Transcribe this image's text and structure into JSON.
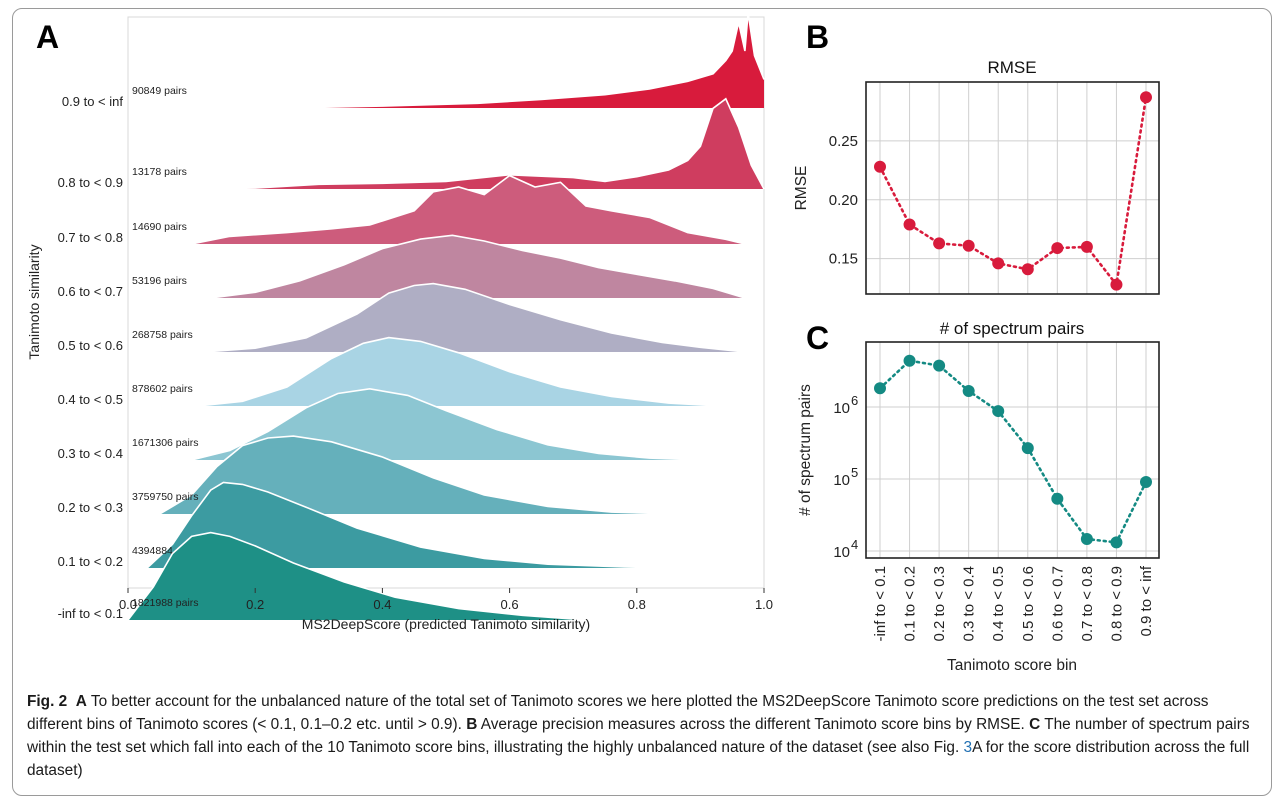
{
  "chart_data": [
    {
      "panel": "A",
      "type": "ridgeline",
      "xlabel": "MS2DeepScore (predicted Tanimoto similarity)",
      "ylabel": "Tanimoto similarity",
      "xlim": [
        0,
        1
      ],
      "xticks": [
        "0.0",
        "0.2",
        "0.4",
        "0.6",
        "0.8",
        "1.0"
      ],
      "ridges": [
        {
          "bin": "0.9 to < inf",
          "pairs": "90849 pairs",
          "color": "#d81b3c",
          "density": [
            [
              0.25,
              0.0
            ],
            [
              0.4,
              0.02
            ],
            [
              0.55,
              0.05
            ],
            [
              0.65,
              0.09
            ],
            [
              0.75,
              0.14
            ],
            [
              0.82,
              0.2
            ],
            [
              0.88,
              0.28
            ],
            [
              0.92,
              0.36
            ],
            [
              0.94,
              0.5
            ],
            [
              0.95,
              0.6
            ],
            [
              0.96,
              0.9
            ],
            [
              0.97,
              0.6
            ],
            [
              0.975,
              1.0
            ],
            [
              0.985,
              0.55
            ],
            [
              1.0,
              0.3
            ]
          ]
        },
        {
          "bin": "0.8 to < 0.9",
          "pairs": "13178 pairs",
          "color": "#cf3d5f",
          "density": [
            [
              0.1,
              0.0
            ],
            [
              0.2,
              0.01
            ],
            [
              0.3,
              0.05
            ],
            [
              0.4,
              0.06
            ],
            [
              0.5,
              0.08
            ],
            [
              0.6,
              0.15
            ],
            [
              0.7,
              0.12
            ],
            [
              0.75,
              0.08
            ],
            [
              0.8,
              0.13
            ],
            [
              0.85,
              0.2
            ],
            [
              0.88,
              0.3
            ],
            [
              0.9,
              0.45
            ],
            [
              0.92,
              0.85
            ],
            [
              0.94,
              0.95
            ],
            [
              0.96,
              0.65
            ],
            [
              0.98,
              0.25
            ],
            [
              1.0,
              0.0
            ]
          ]
        },
        {
          "bin": "0.7 to < 0.8",
          "pairs": "14690 pairs",
          "color": "#cd5c7c",
          "density": [
            [
              0.1,
              0.0
            ],
            [
              0.16,
              0.08
            ],
            [
              0.25,
              0.12
            ],
            [
              0.32,
              0.16
            ],
            [
              0.38,
              0.2
            ],
            [
              0.45,
              0.35
            ],
            [
              0.48,
              0.55
            ],
            [
              0.52,
              0.6
            ],
            [
              0.56,
              0.52
            ],
            [
              0.6,
              0.72
            ],
            [
              0.64,
              0.6
            ],
            [
              0.68,
              0.65
            ],
            [
              0.72,
              0.4
            ],
            [
              0.76,
              0.35
            ],
            [
              0.82,
              0.28
            ],
            [
              0.88,
              0.12
            ],
            [
              0.94,
              0.05
            ],
            [
              0.97,
              0.0
            ]
          ]
        },
        {
          "bin": "0.6 to < 0.7",
          "pairs": "53196 pairs",
          "color": "#bf86a0",
          "density": [
            [
              0.13,
              0.0
            ],
            [
              0.2,
              0.06
            ],
            [
              0.27,
              0.18
            ],
            [
              0.34,
              0.35
            ],
            [
              0.4,
              0.52
            ],
            [
              0.46,
              0.62
            ],
            [
              0.51,
              0.66
            ],
            [
              0.56,
              0.6
            ],
            [
              0.62,
              0.5
            ],
            [
              0.68,
              0.42
            ],
            [
              0.74,
              0.32
            ],
            [
              0.8,
              0.25
            ],
            [
              0.86,
              0.18
            ],
            [
              0.92,
              0.1
            ],
            [
              0.97,
              0.0
            ]
          ]
        },
        {
          "bin": "0.5 to < 0.6",
          "pairs": "268758 pairs",
          "color": "#afaec4",
          "density": [
            [
              0.12,
              0.0
            ],
            [
              0.2,
              0.04
            ],
            [
              0.28,
              0.15
            ],
            [
              0.36,
              0.4
            ],
            [
              0.41,
              0.62
            ],
            [
              0.45,
              0.7
            ],
            [
              0.48,
              0.72
            ],
            [
              0.53,
              0.66
            ],
            [
              0.6,
              0.5
            ],
            [
              0.68,
              0.34
            ],
            [
              0.76,
              0.2
            ],
            [
              0.84,
              0.1
            ],
            [
              0.9,
              0.05
            ],
            [
              0.97,
              0.0
            ]
          ]
        },
        {
          "bin": "0.4 to < 0.5",
          "pairs": "878602 pairs",
          "color": "#a9d4e4",
          "density": [
            [
              0.11,
              0.0
            ],
            [
              0.18,
              0.05
            ],
            [
              0.25,
              0.2
            ],
            [
              0.32,
              0.5
            ],
            [
              0.37,
              0.66
            ],
            [
              0.41,
              0.72
            ],
            [
              0.46,
              0.68
            ],
            [
              0.52,
              0.56
            ],
            [
              0.6,
              0.36
            ],
            [
              0.68,
              0.2
            ],
            [
              0.76,
              0.1
            ],
            [
              0.85,
              0.03
            ],
            [
              0.93,
              0.0
            ]
          ]
        },
        {
          "bin": "0.3 to < 0.4",
          "pairs": "1671306 pairs",
          "color": "#8cc6d2",
          "density": [
            [
              0.1,
              0.0
            ],
            [
              0.16,
              0.1
            ],
            [
              0.22,
              0.3
            ],
            [
              0.28,
              0.55
            ],
            [
              0.33,
              0.7
            ],
            [
              0.38,
              0.75
            ],
            [
              0.44,
              0.68
            ],
            [
              0.5,
              0.52
            ],
            [
              0.58,
              0.32
            ],
            [
              0.66,
              0.16
            ],
            [
              0.74,
              0.07
            ],
            [
              0.82,
              0.02
            ],
            [
              0.9,
              0.0
            ]
          ]
        },
        {
          "bin": "0.2 to < 0.3",
          "pairs": "3759750 pairs",
          "color": "#65b0bb",
          "density": [
            [
              0.05,
              0.0
            ],
            [
              0.1,
              0.2
            ],
            [
              0.14,
              0.5
            ],
            [
              0.18,
              0.72
            ],
            [
              0.22,
              0.8
            ],
            [
              0.26,
              0.82
            ],
            [
              0.32,
              0.76
            ],
            [
              0.4,
              0.6
            ],
            [
              0.48,
              0.38
            ],
            [
              0.56,
              0.2
            ],
            [
              0.66,
              0.08
            ],
            [
              0.76,
              0.02
            ],
            [
              0.86,
              0.0
            ]
          ]
        },
        {
          "bin": "0.1 to < 0.2",
          "pairs": "4394884 pairs",
          "color": "#3c9ba1",
          "density": [
            [
              0.03,
              0.0
            ],
            [
              0.07,
              0.25
            ],
            [
              0.1,
              0.55
            ],
            [
              0.13,
              0.82
            ],
            [
              0.15,
              0.9
            ],
            [
              0.18,
              0.88
            ],
            [
              0.22,
              0.8
            ],
            [
              0.28,
              0.64
            ],
            [
              0.36,
              0.42
            ],
            [
              0.46,
              0.22
            ],
            [
              0.56,
              0.1
            ],
            [
              0.66,
              0.04
            ],
            [
              0.78,
              0.01
            ],
            [
              0.86,
              0.0
            ]
          ]
        },
        {
          "bin": "-inf to < 0.1",
          "pairs": "1821988 pairs",
          "color": "#1e9086",
          "density": [
            [
              0.0,
              0.0
            ],
            [
              0.04,
              0.35
            ],
            [
              0.07,
              0.7
            ],
            [
              0.1,
              0.88
            ],
            [
              0.13,
              0.92
            ],
            [
              0.16,
              0.88
            ],
            [
              0.2,
              0.78
            ],
            [
              0.26,
              0.6
            ],
            [
              0.34,
              0.4
            ],
            [
              0.42,
              0.24
            ],
            [
              0.52,
              0.12
            ],
            [
              0.62,
              0.05
            ],
            [
              0.72,
              0.0
            ]
          ]
        }
      ]
    },
    {
      "panel": "B",
      "type": "line",
      "title": "RMSE",
      "ylabel": "RMSE",
      "ylim": [
        0.12,
        0.3
      ],
      "yticks": [
        0.15,
        0.2,
        0.25
      ],
      "ytick_labels": [
        "0.15",
        "0.20",
        "0.25"
      ],
      "categories": [
        "-inf to < 0.1",
        "0.1 to < 0.2",
        "0.2 to < 0.3",
        "0.3 to < 0.4",
        "0.4 to < 0.5",
        "0.5 to < 0.6",
        "0.6 to < 0.7",
        "0.7 to < 0.8",
        "0.8 to < 0.9",
        "0.9 to < inf"
      ],
      "values": [
        0.228,
        0.179,
        0.163,
        0.161,
        0.146,
        0.141,
        0.159,
        0.16,
        0.128,
        0.287
      ],
      "color": "#d81b3c"
    },
    {
      "panel": "C",
      "type": "line",
      "title": "# of spectrum pairs",
      "ylabel": "# of spectrum pairs",
      "xlabel": "Tanimoto score bin",
      "yscale": "log",
      "ylim": [
        8000,
        8000000
      ],
      "yticks": [
        10000,
        100000,
        1000000
      ],
      "ytick_bases": [
        "10",
        "10",
        "10"
      ],
      "ytick_exps": [
        "4",
        "5",
        "6"
      ],
      "categories": [
        "-inf to < 0.1",
        "0.1 to < 0.2",
        "0.2 to < 0.3",
        "0.3 to < 0.4",
        "0.4 to < 0.5",
        "0.5 to < 0.6",
        "0.6 to < 0.7",
        "0.7 to < 0.8",
        "0.8 to < 0.9",
        "0.9 to < inf"
      ],
      "values": [
        1821988,
        4394884,
        3759750,
        1671306,
        878602,
        268758,
        53196,
        14690,
        13178,
        90849
      ],
      "color": "#148a83"
    }
  ],
  "labels": {
    "panel_a": "A",
    "panel_b": "B",
    "panel_c": "C"
  },
  "caption": {
    "fig": "Fig. 2",
    "a_label": "A",
    "a_text": " To better account for the unbalanced nature of the total set of Tanimoto scores we here plotted the MS2DeepScore Tanimoto score predictions on the test set across different bins of Tanimoto scores (< 0.1, 0.1–0.2 etc. until > 0.9). ",
    "b_label": "B",
    "b_text": " Average precision measures across the different Tanimoto score bins by RMSE. ",
    "c_label": "C",
    "c_text": " The number of spectrum pairs within the test set which fall into each of the 10 Tanimoto score bins, illustrating the highly unbalanced nature of the dataset (see also Fig. ",
    "link": "3",
    "c_text2": "A for the score distribution across the full dataset)"
  }
}
